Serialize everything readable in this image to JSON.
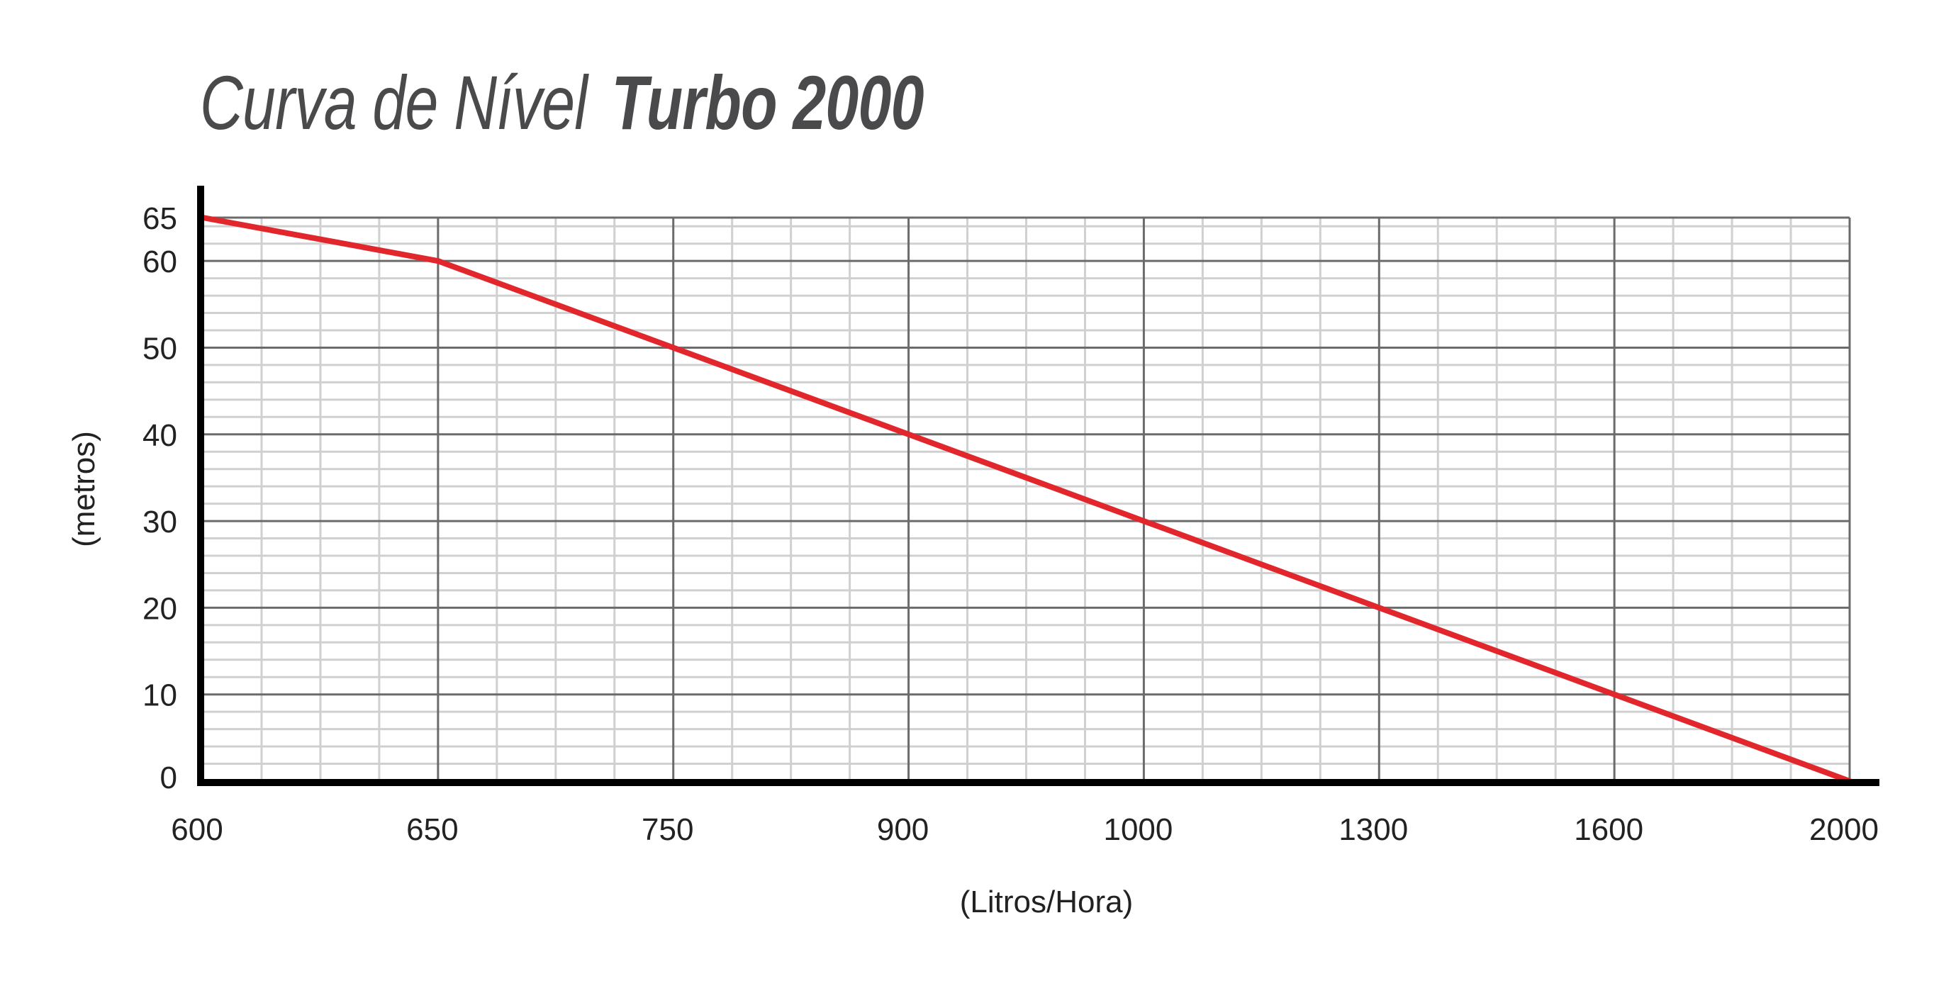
{
  "title": {
    "light": "Curva de Nível",
    "bold": "Turbo 2000"
  },
  "colors": {
    "line": "#e1262c",
    "major_grid": "#6b6b6b",
    "minor_grid": "#d0d0d0",
    "axis": "#000000",
    "title": "#4a4a4c"
  },
  "chart_data": {
    "type": "line",
    "title": "Curva de Nível Turbo 2000",
    "xlabel": "(Litros/Hora)",
    "ylabel": "(metros)",
    "x_scale": "categorical (equally spaced ticks)",
    "categories": [
      "600",
      "650",
      "750",
      "900",
      "1000",
      "1300",
      "1600",
      "2000"
    ],
    "y_ticks": [
      0,
      10,
      20,
      30,
      40,
      50,
      60,
      65
    ],
    "ylim": [
      0,
      65
    ],
    "grid": true,
    "series": [
      {
        "values": [
          65,
          60,
          50,
          40,
          30,
          20,
          10,
          0
        ]
      }
    ]
  }
}
